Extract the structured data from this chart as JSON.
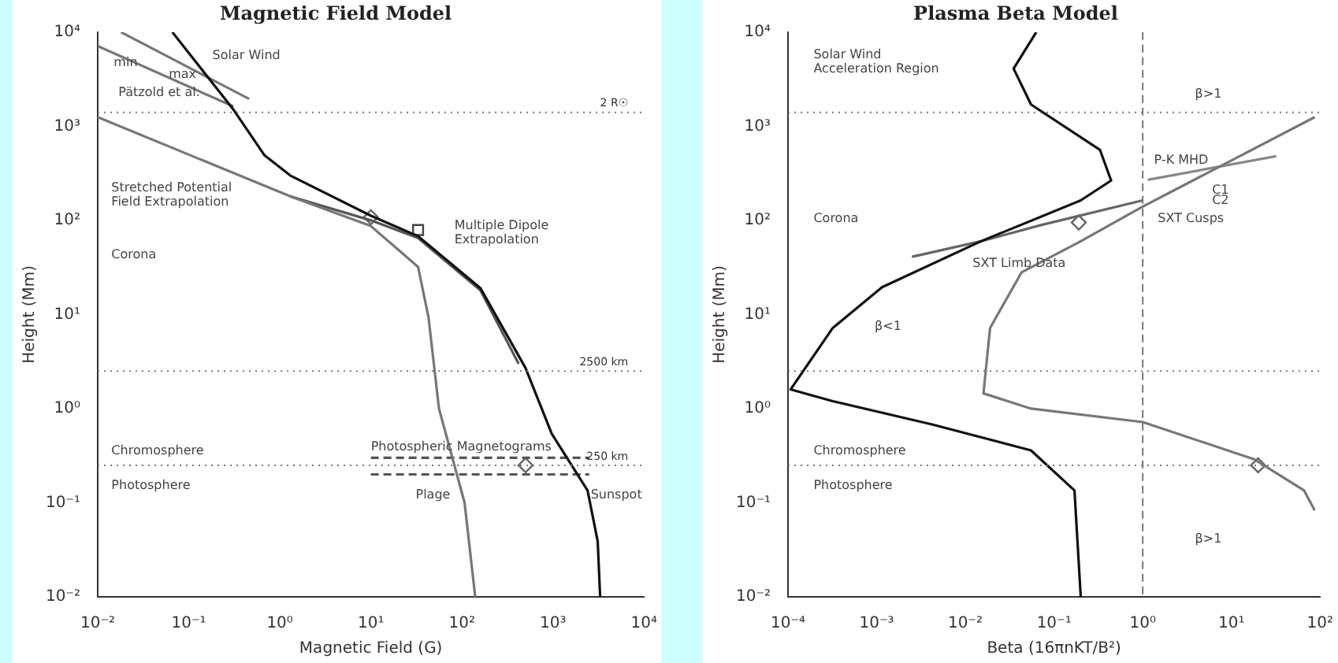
{
  "chart_data": [
    {
      "type": "line",
      "title": "Magnetic Field Model",
      "xlabel": "Magnetic Field (G)",
      "ylabel": "Height (Mm)",
      "log": "xy",
      "grid": false,
      "legend": false,
      "xlim": [
        0.01,
        10000
      ],
      "ylim": [
        0.01,
        10000
      ],
      "xticks": [
        {
          "value": 0.01,
          "label": "10⁻²"
        },
        {
          "value": 0.1,
          "label": "10⁻¹"
        },
        {
          "value": 1,
          "label": "10⁰"
        },
        {
          "value": 10,
          "label": "10¹"
        },
        {
          "value": 100,
          "label": "10²"
        },
        {
          "value": 1000,
          "label": "10³"
        },
        {
          "value": 10000,
          "label": "10⁴"
        }
      ],
      "yticks": [
        {
          "value": 0.01,
          "label": "10⁻²"
        },
        {
          "value": 0.1,
          "label": "10⁻¹"
        },
        {
          "value": 1,
          "label": "10⁰"
        },
        {
          "value": 10,
          "label": "10¹"
        },
        {
          "value": 100,
          "label": "10²"
        },
        {
          "value": 1000,
          "label": "10³"
        },
        {
          "value": 10000,
          "label": "10⁴"
        }
      ],
      "series": [
        {
          "type": "line",
          "color": "#111111",
          "marker": "none",
          "x": [
            0.066,
            0.31,
            0.68,
            1.3,
            10,
            33,
            160,
            500,
            970,
            2400,
            3100,
            3300
          ],
          "values": [
            10000,
            1500,
            490,
            300,
            112,
            68,
            19,
            2.7,
            0.54,
            0.135,
            0.039,
            0.01
          ]
        },
        {
          "type": "line",
          "color": "#777777",
          "marker": "none",
          "x": [
            0.01,
            1.3,
            10,
            33,
            43,
            56,
            107,
            140
          ],
          "values": [
            1250,
            180,
            87,
            32,
            9.3,
            1,
            0.1,
            0.01
          ]
        },
        {
          "type": "line",
          "color": "#555555",
          "marker": "none",
          "x": [
            1.3,
            10,
            33,
            160,
            420
          ],
          "values": [
            180,
            100,
            65,
            18,
            3
          ]
        },
        {
          "type": "line",
          "color": "#777777",
          "marker": "none",
          "x": [
            0.018,
            0.46
          ],
          "values": [
            10000,
            1950
          ]
        },
        {
          "type": "line",
          "color": "#777777",
          "marker": "none",
          "x": [
            0.01,
            0.31
          ],
          "values": [
            7100,
            1620
          ]
        },
        {
          "type": "line",
          "color": "#555555",
          "marker": "none",
          "line_style": "dashed",
          "x": [
            10,
            2500
          ],
          "values": [
            0.3,
            0.3
          ]
        },
        {
          "type": "line",
          "color": "#555555",
          "marker": "none",
          "line_style": "dashed",
          "x": [
            10,
            2500
          ],
          "values": [
            0.2,
            0.2
          ]
        },
        {
          "type": "scatter",
          "color": "#666666",
          "marker": "diamond",
          "x": [
            10,
            500
          ],
          "values": [
            108,
            0.25
          ]
        },
        {
          "type": "scatter",
          "color": "#444444",
          "marker": "square",
          "x": [
            33
          ],
          "values": [
            79
          ]
        }
      ],
      "ref_lines": [
        {
          "axis": "y",
          "value": 1400,
          "label": "2 R☉",
          "line_style": "dotted"
        },
        {
          "axis": "y",
          "value": 2.5,
          "label": "2500 km",
          "line_style": "dotted"
        },
        {
          "axis": "y",
          "value": 0.25,
          "label": "250 km",
          "line_style": "dotted"
        }
      ],
      "annotations": [
        "Solar Wind",
        "max",
        {
          "text": "min",
          "x": 0.015,
          "y": 4700
        },
        "Pätzold et al.",
        "Stretched Potential\nField Extrapolation",
        "Multiple Dipole\nExtrapolation",
        "Corona",
        "Chromosphere",
        "Photosphere",
        "Photospheric Magnetograms",
        "Plage",
        {
          "text": "Sunspot",
          "x": 2600,
          "y": 0.12
        }
      ]
    },
    {
      "type": "line",
      "title": "Plasma Beta Model",
      "xlabel": "Beta (16πnKT/B²)",
      "ylabel": "Height (Mm)",
      "log": "xy",
      "grid": false,
      "legend": false,
      "xlim": [
        0.0001,
        100
      ],
      "ylim": [
        0.01,
        10000
      ],
      "xticks": [
        {
          "value": 0.0001,
          "label": "10⁻⁴"
        },
        {
          "value": 0.001,
          "label": "10⁻³"
        },
        {
          "value": 0.01,
          "label": "10⁻²"
        },
        {
          "value": 0.1,
          "label": "10⁻¹"
        },
        {
          "value": 1,
          "label": "10⁰"
        },
        {
          "value": 10,
          "label": "10¹"
        },
        {
          "value": 100,
          "label": "10²"
        }
      ],
      "yticks": [
        {
          "value": 0.01,
          "label": "10⁻²"
        },
        {
          "value": 0.1,
          "label": "10⁻¹"
        },
        {
          "value": 1,
          "label": "10⁰"
        },
        {
          "value": 10,
          "label": "10¹"
        },
        {
          "value": 100,
          "label": "10²"
        },
        {
          "value": 1000,
          "label": "10³"
        },
        {
          "value": 10000,
          "label": "10⁴"
        }
      ],
      "series": [
        {
          "type": "line",
          "color": "#111111",
          "marker": "none",
          "x": [
            0.063,
            0.035,
            0.055,
            0.33,
            0.44,
            0.2,
            0.015,
            0.00115,
            0.00032,
            0.000107,
            0.00032,
            0.0042,
            0.055,
            0.17,
            0.2
          ],
          "values": [
            10000,
            4100,
            1700,
            560,
            265,
            163,
            60,
            19.5,
            7.2,
            1.6,
            1.2,
            0.68,
            0.36,
            0.135,
            0.01
          ]
        },
        {
          "type": "line",
          "color": "#777777",
          "marker": "none",
          "x": [
            87,
            1,
            0.2,
            0.043,
            0.019,
            0.016,
            0.055,
            1,
            18,
            66,
            87
          ],
          "values": [
            1250,
            140,
            60,
            28,
            7.2,
            1.45,
            1,
            0.72,
            0.29,
            0.135,
            0.083
          ]
        },
        {
          "type": "line",
          "color": "#666666",
          "marker": "none",
          "x": [
            0.0025,
            0.015,
            0.071,
            1
          ],
          "values": [
            41,
            60,
            89,
            163
          ]
        },
        {
          "type": "line",
          "color": "#888888",
          "marker": "none",
          "x": [
            1.14,
            32
          ],
          "values": [
            270,
            480
          ]
        },
        {
          "type": "scatter",
          "color": "#666666",
          "marker": "diamond",
          "x": [
            0.19,
            20
          ],
          "values": [
            95,
            0.25
          ]
        }
      ],
      "ref_lines": [
        {
          "axis": "x",
          "value": 1,
          "line_style": "dashed"
        },
        {
          "axis": "y",
          "value": 1400,
          "line_style": "dotted"
        },
        {
          "axis": "y",
          "value": 2.5,
          "line_style": "dotted"
        },
        {
          "axis": "y",
          "value": 0.25,
          "line_style": "dotted"
        }
      ],
      "annotations": [
        "Solar Wind\nAcceleration Region",
        "Corona",
        "Chromosphere",
        "Photosphere",
        "β>1",
        "β>1",
        "β<1",
        "SXT Limb Data",
        "P-K MHD",
        "C1",
        "C2",
        "SXT Cusps"
      ]
    }
  ]
}
